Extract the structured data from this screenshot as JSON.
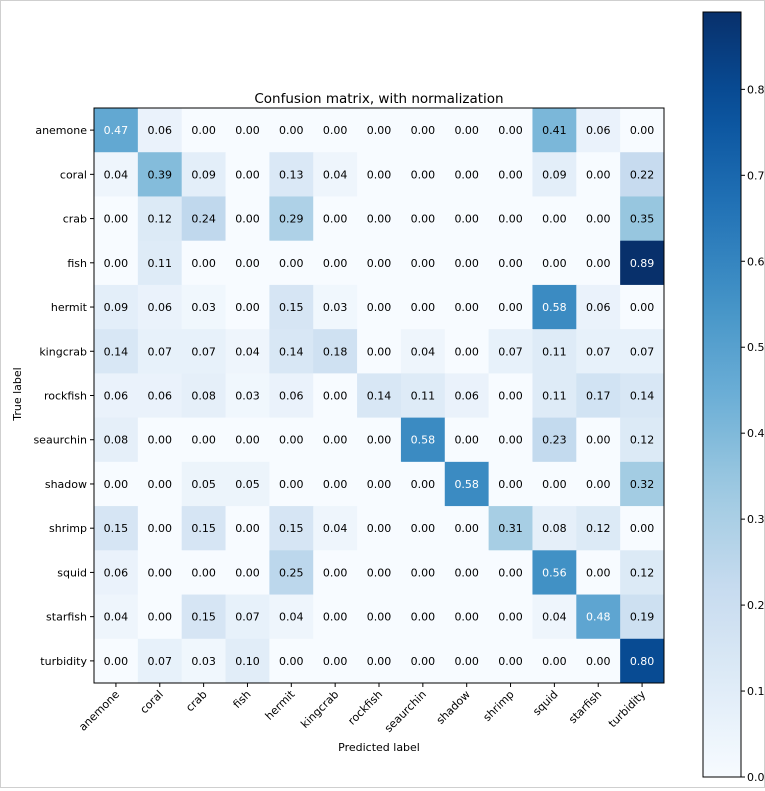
{
  "chart_data": {
    "type": "heatmap",
    "title": "Confusion matrix, with normalization",
    "xlabel": "Predicted label",
    "ylabel": "True label",
    "x_categories": [
      "anemone",
      "coral",
      "crab",
      "fish",
      "hermit",
      "kingcrab",
      "rockfish",
      "seaurchin",
      "shadow",
      "shrimp",
      "squid",
      "starfish",
      "turbidity"
    ],
    "y_categories": [
      "anemone",
      "coral",
      "crab",
      "fish",
      "hermit",
      "kingcrab",
      "rockfish",
      "seaurchin",
      "shadow",
      "shrimp",
      "squid",
      "starfish",
      "turbidity"
    ],
    "values": [
      [
        0.47,
        0.06,
        0.0,
        0.0,
        0.0,
        0.0,
        0.0,
        0.0,
        0.0,
        0.0,
        0.41,
        0.06,
        0.0
      ],
      [
        0.04,
        0.39,
        0.09,
        0.0,
        0.13,
        0.04,
        0.0,
        0.0,
        0.0,
        0.0,
        0.09,
        0.0,
        0.22
      ],
      [
        0.0,
        0.12,
        0.24,
        0.0,
        0.29,
        0.0,
        0.0,
        0.0,
        0.0,
        0.0,
        0.0,
        0.0,
        0.35
      ],
      [
        0.0,
        0.11,
        0.0,
        0.0,
        0.0,
        0.0,
        0.0,
        0.0,
        0.0,
        0.0,
        0.0,
        0.0,
        0.89
      ],
      [
        0.09,
        0.06,
        0.03,
        0.0,
        0.15,
        0.03,
        0.0,
        0.0,
        0.0,
        0.0,
        0.58,
        0.06,
        0.0
      ],
      [
        0.14,
        0.07,
        0.07,
        0.04,
        0.14,
        0.18,
        0.0,
        0.04,
        0.0,
        0.07,
        0.11,
        0.07,
        0.07
      ],
      [
        0.06,
        0.06,
        0.08,
        0.03,
        0.06,
        0.0,
        0.14,
        0.11,
        0.06,
        0.0,
        0.11,
        0.17,
        0.14
      ],
      [
        0.08,
        0.0,
        0.0,
        0.0,
        0.0,
        0.0,
        0.0,
        0.58,
        0.0,
        0.0,
        0.23,
        0.0,
        0.12
      ],
      [
        0.0,
        0.0,
        0.05,
        0.05,
        0.0,
        0.0,
        0.0,
        0.0,
        0.58,
        0.0,
        0.0,
        0.0,
        0.32
      ],
      [
        0.15,
        0.0,
        0.15,
        0.0,
        0.15,
        0.04,
        0.0,
        0.0,
        0.0,
        0.31,
        0.08,
        0.12,
        0.0
      ],
      [
        0.06,
        0.0,
        0.0,
        0.0,
        0.25,
        0.0,
        0.0,
        0.0,
        0.0,
        0.0,
        0.56,
        0.0,
        0.12
      ],
      [
        0.04,
        0.0,
        0.15,
        0.07,
        0.04,
        0.0,
        0.0,
        0.0,
        0.0,
        0.0,
        0.04,
        0.48,
        0.19
      ],
      [
        0.0,
        0.07,
        0.03,
        0.1,
        0.0,
        0.0,
        0.0,
        0.0,
        0.0,
        0.0,
        0.0,
        0.0,
        0.8
      ]
    ],
    "colormap": "Blues",
    "color_range": [
      0,
      0.89
    ],
    "colorbar": {
      "ticks": [
        0.0,
        0.1,
        0.2,
        0.3,
        0.4,
        0.5,
        0.6,
        0.7,
        0.8
      ],
      "tick_labels": [
        "0.0",
        "0.1",
        "0.2",
        "0.3",
        "0.4",
        "0.5",
        "0.6",
        "0.7",
        "0.8"
      ]
    },
    "value_format": "0.00",
    "grid": false,
    "legend": "colorbar-right"
  }
}
